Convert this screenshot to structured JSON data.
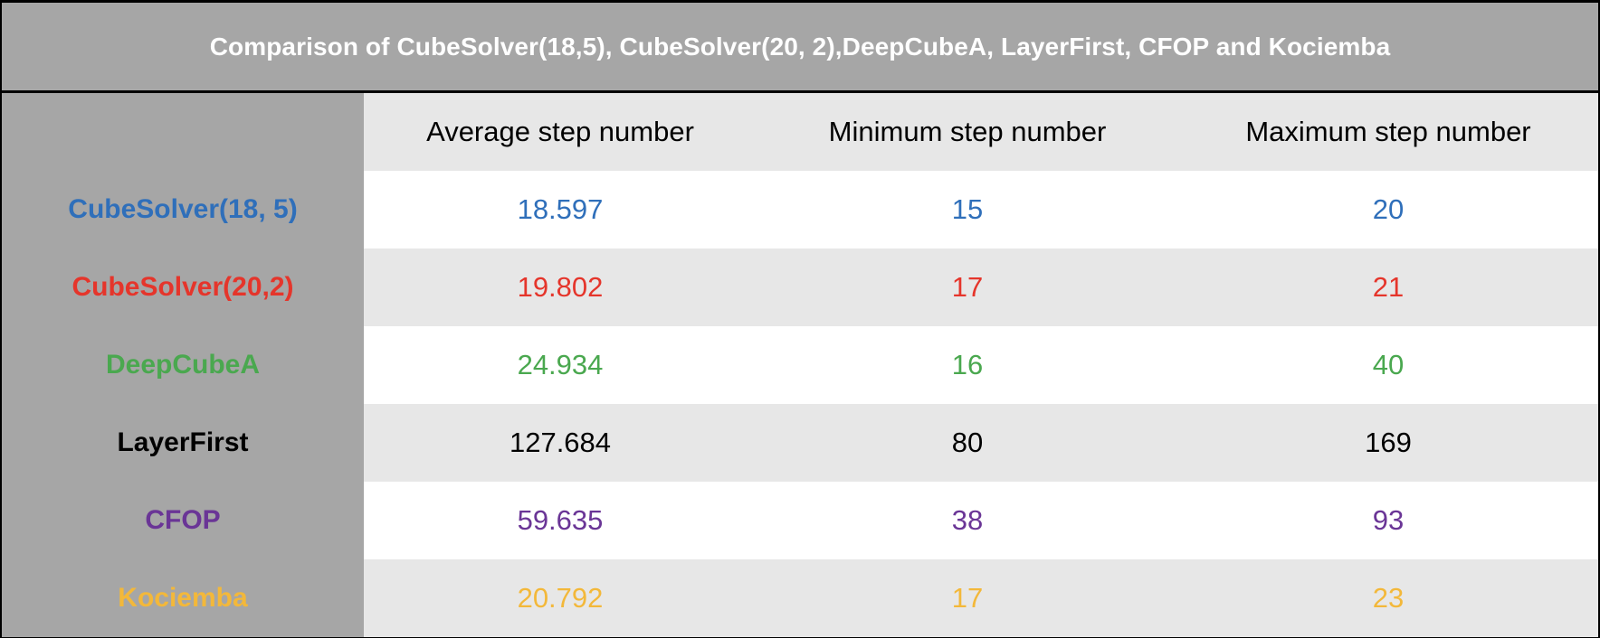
{
  "chart_data": {
    "type": "table",
    "title": "Comparison of CubeSolver(18,5), CubeSolver(20, 2),DeepCubeA, LayerFirst, CFOP and Kociemba",
    "columns": [
      "Average step number",
      "Minimum step number",
      "Maximum step number"
    ],
    "rows": [
      {
        "label": "CubeSolver(18, 5)",
        "color": "#2f6fba",
        "values": [
          "18.597",
          "15",
          "20"
        ]
      },
      {
        "label": "CubeSolver(20,2)",
        "color": "#e5352b",
        "values": [
          "19.802",
          "17",
          "21"
        ]
      },
      {
        "label": "DeepCubeA",
        "color": "#4aa84f",
        "values": [
          "24.934",
          "16",
          "40"
        ]
      },
      {
        "label": "LayerFirst",
        "color": "#000000",
        "values": [
          "127.684",
          "80",
          "169"
        ]
      },
      {
        "label": "CFOP",
        "color": "#6a3596",
        "values": [
          "59.635",
          "38",
          "93"
        ]
      },
      {
        "label": "Kociemba",
        "color": "#f3b83a",
        "values": [
          "20.792",
          "17",
          "23"
        ]
      }
    ]
  },
  "colors": {
    "header_gray": "#a6a6a6",
    "stripe": "#e7e7e7",
    "title_text": "#ffffff"
  }
}
